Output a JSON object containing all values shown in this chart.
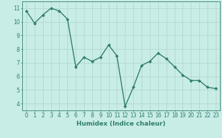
{
  "x": [
    0,
    1,
    2,
    3,
    4,
    5,
    6,
    7,
    8,
    9,
    10,
    11,
    12,
    13,
    14,
    15,
    16,
    17,
    18,
    19,
    20,
    21,
    22,
    23
  ],
  "y": [
    10.8,
    9.9,
    10.5,
    11.0,
    10.8,
    10.2,
    6.7,
    7.4,
    7.1,
    7.4,
    8.3,
    7.5,
    3.8,
    5.2,
    6.8,
    7.1,
    7.7,
    7.3,
    6.7,
    6.1,
    5.7,
    5.7,
    5.2,
    5.1
  ],
  "line_color": "#2e7d6e",
  "marker": "D",
  "marker_size": 2,
  "line_width": 1.0,
  "xlabel": "Humidex (Indice chaleur)",
  "xlim": [
    -0.5,
    23.5
  ],
  "ylim": [
    3.5,
    11.5
  ],
  "yticks": [
    4,
    5,
    6,
    7,
    8,
    9,
    10,
    11
  ],
  "xticks": [
    0,
    1,
    2,
    3,
    4,
    5,
    6,
    7,
    8,
    9,
    10,
    11,
    12,
    13,
    14,
    15,
    16,
    17,
    18,
    19,
    20,
    21,
    22,
    23
  ],
  "bg_color": "#c8ece6",
  "grid_color": "#b0d8d0",
  "tick_color": "#2e7d6e",
  "label_color": "#2e7d6e",
  "tick_fontsize": 5.5,
  "xlabel_fontsize": 6.5
}
